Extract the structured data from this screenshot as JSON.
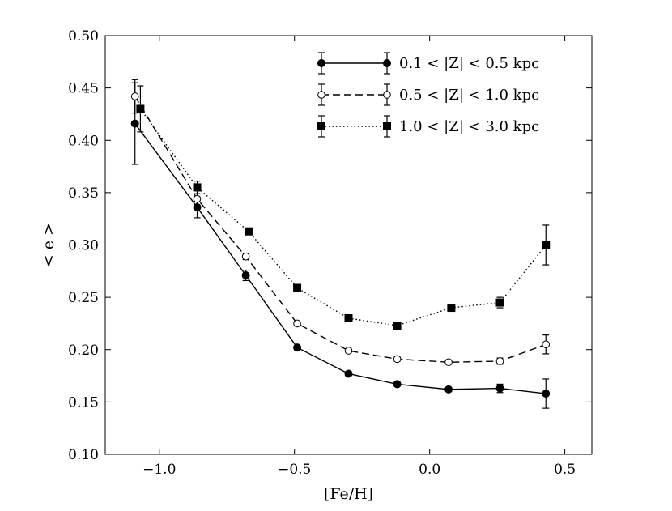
{
  "chart_data": {
    "type": "line",
    "title": "",
    "xlabel": "[Fe/H]",
    "ylabel": "< e >",
    "xlim": [
      -1.2,
      0.6
    ],
    "ylim": [
      0.1,
      0.5
    ],
    "xticks": [
      -1.0,
      -0.5,
      0.0,
      0.5
    ],
    "xtick_labels": [
      "−1.0",
      "−0.5",
      "0.0",
      "0.5"
    ],
    "yticks": [
      0.1,
      0.15,
      0.2,
      0.25,
      0.3,
      0.35,
      0.4,
      0.45,
      0.5
    ],
    "ytick_labels": [
      "0.10",
      "0.15",
      "0.20",
      "0.25",
      "0.30",
      "0.35",
      "0.40",
      "0.45",
      "0.50"
    ],
    "grid": false,
    "legend_position": "top-right",
    "series": [
      {
        "name": "0.1 < |Z| < 0.5 kpc",
        "line_style": "solid",
        "marker": "filled-circle",
        "x": [
          -1.09,
          -0.86,
          -0.68,
          -0.49,
          -0.3,
          -0.12,
          0.07,
          0.26,
          0.43
        ],
        "y": [
          0.416,
          0.336,
          0.271,
          0.202,
          0.177,
          0.167,
          0.162,
          0.163,
          0.158
        ],
        "yerr": [
          0.039,
          0.01,
          0.005,
          0.002,
          0.002,
          0.002,
          0.002,
          0.004,
          0.014
        ]
      },
      {
        "name": "0.5 < |Z| < 1.0 kpc",
        "line_style": "dashed",
        "marker": "open-circle",
        "x": [
          -1.09,
          -0.86,
          -0.68,
          -0.49,
          -0.3,
          -0.12,
          0.07,
          0.26,
          0.43
        ],
        "y": [
          0.442,
          0.344,
          0.289,
          0.225,
          0.199,
          0.191,
          0.188,
          0.189,
          0.205
        ],
        "yerr": [
          0.016,
          0.009,
          0.003,
          0.002,
          0.002,
          0.002,
          0.002,
          0.003,
          0.009
        ]
      },
      {
        "name": "1.0 < |Z| < 3.0 kpc",
        "line_style": "dotted",
        "marker": "filled-square",
        "x": [
          -1.07,
          -0.86,
          -0.67,
          -0.49,
          -0.3,
          -0.12,
          0.08,
          0.26,
          0.43
        ],
        "y": [
          0.43,
          0.355,
          0.313,
          0.259,
          0.23,
          0.223,
          0.24,
          0.245,
          0.3
        ],
        "yerr": [
          0.022,
          0.006,
          0.003,
          0.002,
          0.002,
          0.002,
          0.003,
          0.005,
          0.019
        ]
      }
    ]
  }
}
